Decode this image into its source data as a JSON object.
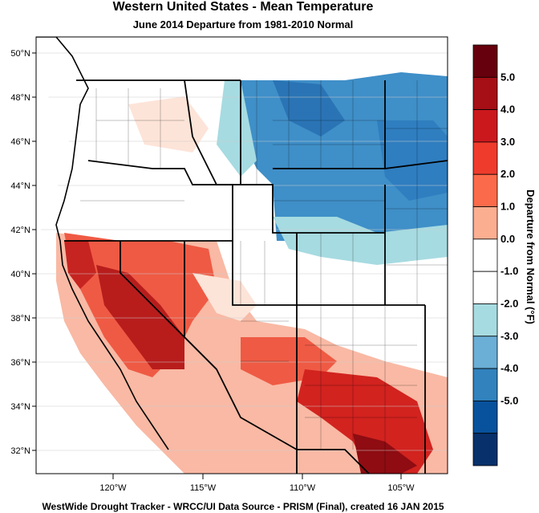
{
  "title": "Western United States - Mean Temperature",
  "subtitle": "June 2014  Departure from 1981-2010 Normal",
  "footer": "WestWide Drought Tracker - WRCC/UI  Data Source - PRISM (Final), created 16 JAN 2015",
  "map": {
    "lat_labels": [
      "50°N",
      "48°N",
      "46°N",
      "44°N",
      "42°N",
      "40°N",
      "38°N",
      "36°N",
      "34°N",
      "32°N"
    ],
    "lon_labels": [
      "120°W",
      "115°W",
      "110°W",
      "105°W"
    ]
  },
  "colorbar": {
    "title": "Departure from Normal (°F)",
    "tick_labels": [
      "5.0",
      "4.0",
      "3.0",
      "2.0",
      "1.0",
      "0.0",
      "-1.0",
      "-2.0",
      "-3.0",
      "-4.0",
      "-5.0"
    ],
    "colors": [
      "#67000d",
      "#a50f15",
      "#cb181d",
      "#ef3b2c",
      "#fb6a4a",
      "#fcae91",
      "#ffffff",
      "#ffffff",
      "#a6dbe1",
      "#6baed6",
      "#3182bd",
      "#08519c",
      "#08306b"
    ]
  },
  "legend_colors": {
    "strong_warm": "#a50f15",
    "warm": "#ef3b2c",
    "mild_warm": "#fcae91",
    "neutral": "#ffffff",
    "mild_cool": "#a6dbe1",
    "cool": "#3182bd"
  }
}
